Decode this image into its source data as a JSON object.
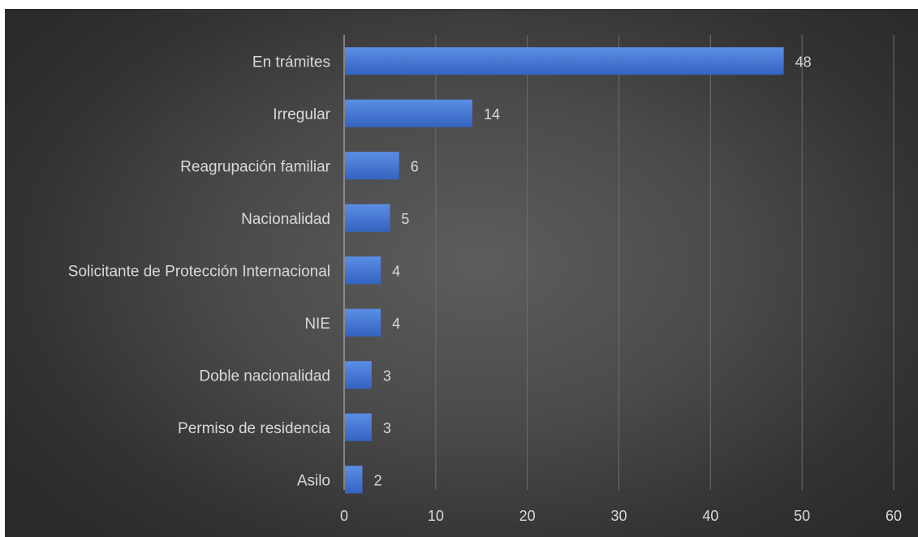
{
  "chart_data": {
    "type": "bar",
    "orientation": "horizontal",
    "categories": [
      "En trámites",
      "Irregular",
      "Reagrupación familiar",
      "Nacionalidad",
      "Solicitante de Protección Internacional",
      "NIE",
      "Doble nacionalidad",
      "Permiso de residencia",
      "Asilo"
    ],
    "values": [
      48,
      14,
      6,
      5,
      4,
      4,
      3,
      3,
      2
    ],
    "data_labels": [
      "48",
      "14",
      "6",
      "5",
      "4",
      "4",
      "3",
      "3",
      "2"
    ],
    "xlim": [
      0,
      60
    ],
    "x_ticks": [
      0,
      10,
      20,
      30,
      40,
      50,
      60
    ],
    "x_tick_labels": [
      "0",
      "10",
      "20",
      "30",
      "40",
      "50",
      "60"
    ],
    "grid": "vertical",
    "legend": "none",
    "colors": {
      "bar_top": "#5b8ee6",
      "bar_bottom": "#3563c0",
      "background_center": "#5d5d5d",
      "background_edge": "#2b2b2b",
      "text": "#d9d9d9"
    }
  }
}
